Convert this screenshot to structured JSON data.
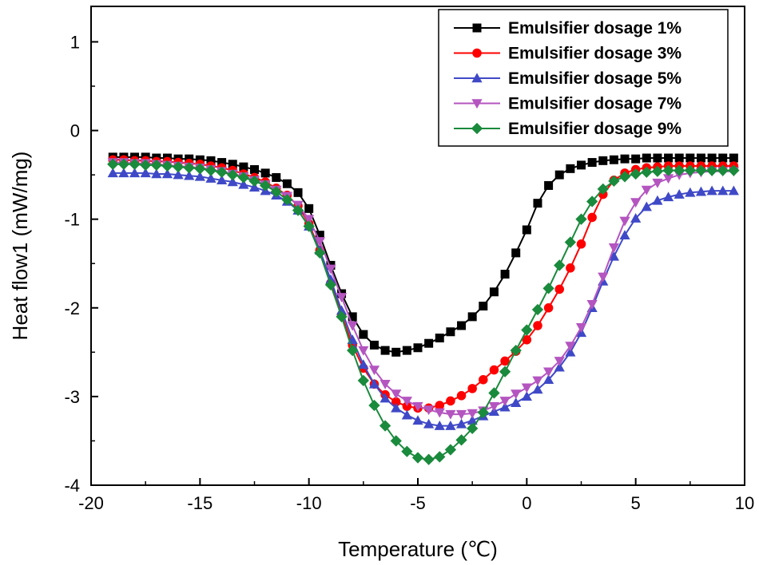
{
  "chart_data": {
    "type": "line",
    "xlabel": "Temperature (℃)",
    "ylabel": "Heat flow1 (mW/mg)",
    "xlim": [
      -20,
      10
    ],
    "ylim": [
      -4,
      1.4
    ],
    "xticks": [
      -20,
      -15,
      -10,
      -5,
      0,
      5,
      10
    ],
    "yticks": [
      -4,
      -3,
      -2,
      -1,
      0,
      1
    ],
    "xtick_labels": [
      "-20",
      "-15",
      "-10",
      "-5",
      "0",
      "5",
      "10"
    ],
    "ytick_labels": [
      "-4",
      "-3",
      "-2",
      "-1",
      "0",
      "1"
    ],
    "legend_position": "top-right",
    "series": [
      {
        "name": "Emulsifier dosage 1%",
        "color": "#000000",
        "marker": "square",
        "x": [
          -19,
          -18.5,
          -18,
          -17.5,
          -17,
          -16.5,
          -16,
          -15.5,
          -15,
          -14.5,
          -14,
          -13.5,
          -13,
          -12.5,
          -12,
          -11.5,
          -11,
          -10.5,
          -10,
          -9.5,
          -9,
          -8.5,
          -8,
          -7.5,
          -7,
          -6.5,
          -6,
          -5.5,
          -5,
          -4.5,
          -4,
          -3.5,
          -3,
          -2.5,
          -2,
          -1.5,
          -1,
          -0.5,
          0,
          0.5,
          1,
          1.5,
          2,
          2.5,
          3,
          3.5,
          4,
          4.5,
          5,
          5.5,
          6,
          6.5,
          7,
          7.5,
          8,
          8.5,
          9,
          9.5
        ],
        "y": [
          -0.3,
          -0.3,
          -0.3,
          -0.3,
          -0.31,
          -0.31,
          -0.32,
          -0.32,
          -0.33,
          -0.34,
          -0.36,
          -0.38,
          -0.41,
          -0.44,
          -0.48,
          -0.53,
          -0.6,
          -0.7,
          -0.88,
          -1.18,
          -1.52,
          -1.84,
          -2.1,
          -2.3,
          -2.42,
          -2.48,
          -2.5,
          -2.48,
          -2.45,
          -2.4,
          -2.34,
          -2.27,
          -2.2,
          -2.1,
          -1.98,
          -1.82,
          -1.62,
          -1.38,
          -1.12,
          -0.82,
          -0.62,
          -0.5,
          -0.43,
          -0.39,
          -0.36,
          -0.34,
          -0.33,
          -0.32,
          -0.32,
          -0.31,
          -0.31,
          -0.31,
          -0.31,
          -0.31,
          -0.31,
          -0.31,
          -0.31,
          -0.31
        ]
      },
      {
        "name": "Emulsifier dosage 3%",
        "color": "#ff0000",
        "marker": "circle",
        "x": [
          -19,
          -18.5,
          -18,
          -17.5,
          -17,
          -16.5,
          -16,
          -15.5,
          -15,
          -14.5,
          -14,
          -13.5,
          -13,
          -12.5,
          -12,
          -11.5,
          -11,
          -10.5,
          -10,
          -9.5,
          -9,
          -8.5,
          -8,
          -7.5,
          -7,
          -6.5,
          -6,
          -5.5,
          -5,
          -4.5,
          -4,
          -3.5,
          -3,
          -2.5,
          -2,
          -1.5,
          -1,
          -0.5,
          0,
          0.5,
          1,
          1.5,
          2,
          2.5,
          3,
          3.5,
          4,
          4.5,
          5,
          5.5,
          6,
          6.5,
          7,
          7.5,
          8,
          8.5,
          9,
          9.5
        ],
        "y": [
          -0.33,
          -0.33,
          -0.34,
          -0.34,
          -0.35,
          -0.35,
          -0.36,
          -0.37,
          -0.38,
          -0.4,
          -0.42,
          -0.45,
          -0.49,
          -0.53,
          -0.58,
          -0.65,
          -0.73,
          -0.85,
          -1.05,
          -1.35,
          -1.72,
          -2.08,
          -2.42,
          -2.68,
          -2.86,
          -2.98,
          -3.06,
          -3.11,
          -3.13,
          -3.13,
          -3.1,
          -3.05,
          -2.99,
          -2.91,
          -2.81,
          -2.7,
          -2.6,
          -2.49,
          -2.36,
          -2.2,
          -2.0,
          -1.79,
          -1.55,
          -1.28,
          -0.98,
          -0.72,
          -0.56,
          -0.48,
          -0.44,
          -0.42,
          -0.41,
          -0.4,
          -0.4,
          -0.4,
          -0.4,
          -0.4,
          -0.4,
          -0.4
        ]
      },
      {
        "name": "Emulsifier dosage 5%",
        "color": "#3f49c7",
        "marker": "triangle-up",
        "x": [
          -19,
          -18.5,
          -18,
          -17.5,
          -17,
          -16.5,
          -16,
          -15.5,
          -15,
          -14.5,
          -14,
          -13.5,
          -13,
          -12.5,
          -12,
          -11.5,
          -11,
          -10.5,
          -10,
          -9.5,
          -9,
          -8.5,
          -8,
          -7.5,
          -7,
          -6.5,
          -6,
          -5.5,
          -5,
          -4.5,
          -4,
          -3.5,
          -3,
          -2.5,
          -2,
          -1.5,
          -1,
          -0.5,
          0,
          0.5,
          1,
          1.5,
          2,
          2.5,
          3,
          3.5,
          4,
          4.5,
          5,
          5.5,
          6,
          6.5,
          7,
          7.5,
          8,
          8.5,
          9,
          9.5
        ],
        "y": [
          -0.48,
          -0.48,
          -0.48,
          -0.48,
          -0.49,
          -0.49,
          -0.5,
          -0.51,
          -0.52,
          -0.54,
          -0.56,
          -0.58,
          -0.61,
          -0.64,
          -0.68,
          -0.73,
          -0.8,
          -0.9,
          -1.08,
          -1.35,
          -1.68,
          -2.03,
          -2.36,
          -2.64,
          -2.86,
          -3.02,
          -3.13,
          -3.21,
          -3.27,
          -3.31,
          -3.33,
          -3.33,
          -3.31,
          -3.27,
          -3.22,
          -3.17,
          -3.12,
          -3.07,
          -3.0,
          -2.92,
          -2.81,
          -2.67,
          -2.5,
          -2.28,
          -2.0,
          -1.7,
          -1.42,
          -1.18,
          -0.99,
          -0.86,
          -0.79,
          -0.75,
          -0.72,
          -0.7,
          -0.69,
          -0.68,
          -0.68,
          -0.68
        ]
      },
      {
        "name": "Emulsifier dosage 7%",
        "color": "#b455c0",
        "marker": "triangle-down",
        "x": [
          -19,
          -18.5,
          -18,
          -17.5,
          -17,
          -16.5,
          -16,
          -15.5,
          -15,
          -14.5,
          -14,
          -13.5,
          -13,
          -12.5,
          -12,
          -11.5,
          -11,
          -10.5,
          -10,
          -9.5,
          -9,
          -8.5,
          -8,
          -7.5,
          -7,
          -6.5,
          -6,
          -5.5,
          -5,
          -4.5,
          -4,
          -3.5,
          -3,
          -2.5,
          -2,
          -1.5,
          -1,
          -0.5,
          0,
          0.5,
          1,
          1.5,
          2,
          2.5,
          3,
          3.5,
          4,
          4.5,
          5,
          5.5,
          6,
          6.5,
          7,
          7.5,
          8,
          8.5,
          9,
          9.5
        ],
        "y": [
          -0.36,
          -0.36,
          -0.37,
          -0.37,
          -0.38,
          -0.39,
          -0.4,
          -0.41,
          -0.42,
          -0.44,
          -0.46,
          -0.49,
          -0.52,
          -0.56,
          -0.61,
          -0.67,
          -0.74,
          -0.84,
          -1.0,
          -1.25,
          -1.56,
          -1.88,
          -2.2,
          -2.48,
          -2.7,
          -2.86,
          -2.97,
          -3.05,
          -3.11,
          -3.15,
          -3.18,
          -3.2,
          -3.2,
          -3.19,
          -3.16,
          -3.11,
          -3.05,
          -2.97,
          -2.9,
          -2.82,
          -2.72,
          -2.6,
          -2.43,
          -2.22,
          -1.96,
          -1.65,
          -1.32,
          -1.02,
          -0.81,
          -0.67,
          -0.59,
          -0.54,
          -0.5,
          -0.48,
          -0.47,
          -0.46,
          -0.46,
          -0.46
        ]
      },
      {
        "name": "Emulsifier dosage 9%",
        "color": "#1a8a3c",
        "marker": "diamond",
        "x": [
          -19,
          -18.5,
          -18,
          -17.5,
          -17,
          -16.5,
          -16,
          -15.5,
          -15,
          -14.5,
          -14,
          -13.5,
          -13,
          -12.5,
          -12,
          -11.5,
          -11,
          -10.5,
          -10,
          -9.5,
          -9,
          -8.5,
          -8,
          -7.5,
          -7,
          -6.5,
          -6,
          -5.5,
          -5,
          -4.5,
          -4,
          -3.5,
          -3,
          -2.5,
          -2,
          -1.5,
          -1,
          -0.5,
          0,
          0.5,
          1,
          1.5,
          2,
          2.5,
          3,
          3.5,
          4,
          4.5,
          5,
          5.5,
          6,
          6.5,
          7,
          7.5,
          8,
          8.5,
          9,
          9.5
        ],
        "y": [
          -0.38,
          -0.38,
          -0.38,
          -0.39,
          -0.39,
          -0.4,
          -0.41,
          -0.42,
          -0.43,
          -0.45,
          -0.47,
          -0.5,
          -0.53,
          -0.57,
          -0.62,
          -0.69,
          -0.78,
          -0.9,
          -1.08,
          -1.38,
          -1.74,
          -2.1,
          -2.48,
          -2.82,
          -3.1,
          -3.33,
          -3.5,
          -3.62,
          -3.69,
          -3.71,
          -3.68,
          -3.6,
          -3.49,
          -3.36,
          -3.18,
          -2.96,
          -2.72,
          -2.48,
          -2.25,
          -2.02,
          -1.78,
          -1.52,
          -1.26,
          -1.0,
          -0.8,
          -0.66,
          -0.57,
          -0.52,
          -0.49,
          -0.47,
          -0.46,
          -0.45,
          -0.45,
          -0.45,
          -0.45,
          -0.45,
          -0.45,
          -0.45
        ]
      }
    ]
  }
}
